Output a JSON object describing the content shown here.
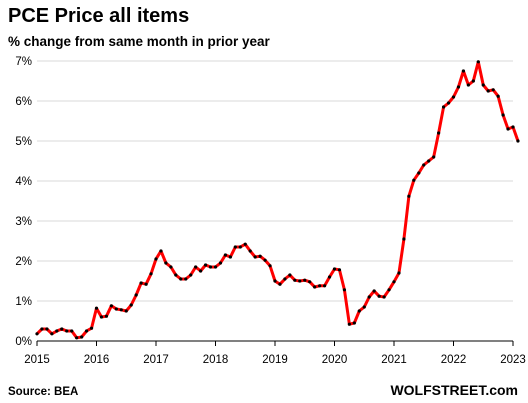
{
  "chart_data": {
    "type": "line",
    "title": "PCE Price all items",
    "subtitle": "% change from same month in prior year",
    "source": "Source: BEA",
    "brand": "WOLFSTREET.com",
    "ylim": [
      0,
      7
    ],
    "xlim": [
      2015.0,
      2023.0
    ],
    "grid": true,
    "y_ticks": [
      {
        "value": 0,
        "label": "0%"
      },
      {
        "value": 1,
        "label": "1%"
      },
      {
        "value": 2,
        "label": "2%"
      },
      {
        "value": 3,
        "label": "3%"
      },
      {
        "value": 4,
        "label": "4%"
      },
      {
        "value": 5,
        "label": "5%"
      },
      {
        "value": 6,
        "label": "6%"
      },
      {
        "value": 7,
        "label": "7%"
      }
    ],
    "x_ticks": [
      {
        "value": 2015,
        "label": "2015"
      },
      {
        "value": 2016,
        "label": "2016"
      },
      {
        "value": 2017,
        "label": "2017"
      },
      {
        "value": 2018,
        "label": "2018"
      },
      {
        "value": 2019,
        "label": "2019"
      },
      {
        "value": 2020,
        "label": "2020"
      },
      {
        "value": 2021,
        "label": "2021"
      },
      {
        "value": 2022,
        "label": "2022"
      },
      {
        "value": 2023,
        "label": "2023"
      }
    ],
    "series": [
      {
        "color": "#ff0000",
        "points": [
          [
            "2015-01",
            0.18
          ],
          [
            "2015-02",
            0.3
          ],
          [
            "2015-03",
            0.3
          ],
          [
            "2015-04",
            0.18
          ],
          [
            "2015-05",
            0.25
          ],
          [
            "2015-06",
            0.3
          ],
          [
            "2015-07",
            0.25
          ],
          [
            "2015-08",
            0.25
          ],
          [
            "2015-09",
            0.08
          ],
          [
            "2015-10",
            0.1
          ],
          [
            "2015-11",
            0.25
          ],
          [
            "2015-12",
            0.32
          ],
          [
            "2016-01",
            0.82
          ],
          [
            "2016-02",
            0.6
          ],
          [
            "2016-03",
            0.62
          ],
          [
            "2016-04",
            0.88
          ],
          [
            "2016-05",
            0.8
          ],
          [
            "2016-06",
            0.78
          ],
          [
            "2016-07",
            0.75
          ],
          [
            "2016-08",
            0.9
          ],
          [
            "2016-09",
            1.15
          ],
          [
            "2016-10",
            1.45
          ],
          [
            "2016-11",
            1.42
          ],
          [
            "2016-12",
            1.68
          ],
          [
            "2017-01",
            2.05
          ],
          [
            "2017-02",
            2.25
          ],
          [
            "2017-03",
            1.95
          ],
          [
            "2017-04",
            1.85
          ],
          [
            "2017-05",
            1.65
          ],
          [
            "2017-06",
            1.55
          ],
          [
            "2017-07",
            1.55
          ],
          [
            "2017-08",
            1.65
          ],
          [
            "2017-09",
            1.85
          ],
          [
            "2017-10",
            1.75
          ],
          [
            "2017-11",
            1.9
          ],
          [
            "2017-12",
            1.85
          ],
          [
            "2018-01",
            1.85
          ],
          [
            "2018-02",
            1.95
          ],
          [
            "2018-03",
            2.15
          ],
          [
            "2018-04",
            2.1
          ],
          [
            "2018-05",
            2.35
          ],
          [
            "2018-06",
            2.35
          ],
          [
            "2018-07",
            2.42
          ],
          [
            "2018-08",
            2.25
          ],
          [
            "2018-09",
            2.1
          ],
          [
            "2018-10",
            2.12
          ],
          [
            "2018-11",
            2.02
          ],
          [
            "2018-12",
            1.88
          ],
          [
            "2019-01",
            1.5
          ],
          [
            "2019-02",
            1.42
          ],
          [
            "2019-03",
            1.55
          ],
          [
            "2019-04",
            1.65
          ],
          [
            "2019-05",
            1.52
          ],
          [
            "2019-06",
            1.5
          ],
          [
            "2019-07",
            1.52
          ],
          [
            "2019-08",
            1.48
          ],
          [
            "2019-09",
            1.35
          ],
          [
            "2019-10",
            1.38
          ],
          [
            "2019-11",
            1.38
          ],
          [
            "2019-12",
            1.6
          ],
          [
            "2020-01",
            1.8
          ],
          [
            "2020-02",
            1.78
          ],
          [
            "2020-03",
            1.28
          ],
          [
            "2020-04",
            0.42
          ],
          [
            "2020-05",
            0.45
          ],
          [
            "2020-06",
            0.75
          ],
          [
            "2020-07",
            0.85
          ],
          [
            "2020-08",
            1.1
          ],
          [
            "2020-09",
            1.25
          ],
          [
            "2020-10",
            1.12
          ],
          [
            "2020-11",
            1.1
          ],
          [
            "2020-12",
            1.28
          ],
          [
            "2021-01",
            1.48
          ],
          [
            "2021-02",
            1.7
          ],
          [
            "2021-03",
            2.55
          ],
          [
            "2021-04",
            3.62
          ],
          [
            "2021-05",
            4.02
          ],
          [
            "2021-06",
            4.2
          ],
          [
            "2021-07",
            4.4
          ],
          [
            "2021-08",
            4.5
          ],
          [
            "2021-09",
            4.6
          ],
          [
            "2021-10",
            5.2
          ],
          [
            "2021-11",
            5.85
          ],
          [
            "2021-12",
            5.95
          ],
          [
            "2022-01",
            6.1
          ],
          [
            "2022-02",
            6.35
          ],
          [
            "2022-03",
            6.75
          ],
          [
            "2022-04",
            6.4
          ],
          [
            "2022-05",
            6.5
          ],
          [
            "2022-06",
            6.98
          ],
          [
            "2022-07",
            6.4
          ],
          [
            "2022-08",
            6.25
          ],
          [
            "2022-09",
            6.28
          ],
          [
            "2022-10",
            6.12
          ],
          [
            "2022-11",
            5.65
          ],
          [
            "2022-12",
            5.3
          ],
          [
            "2023-01",
            5.35
          ],
          [
            "2023-02",
            5.0
          ]
        ]
      }
    ]
  }
}
